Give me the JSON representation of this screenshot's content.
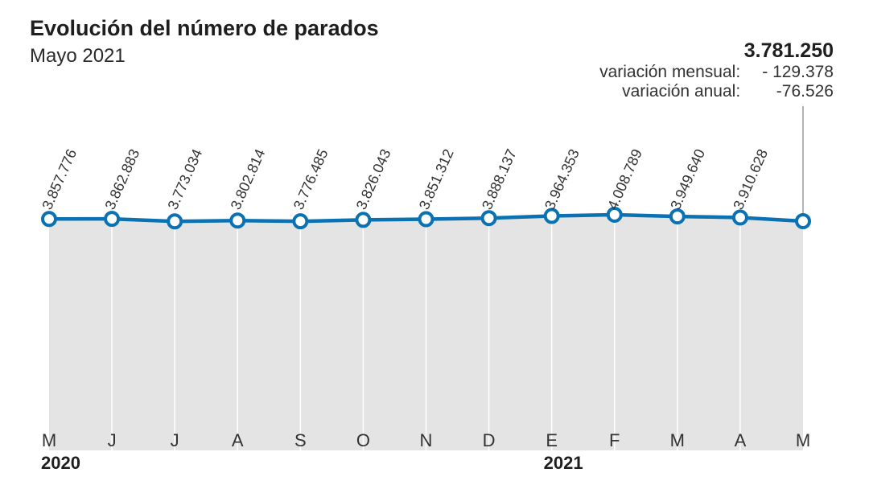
{
  "header": {
    "title": "Evolución del número de parados",
    "subtitle": "Mayo 2021"
  },
  "summary": {
    "current_value": "3.781.250",
    "monthly_label": "variación mensual:",
    "monthly_value": "- 129.378",
    "annual_label": "variación anual:",
    "annual_value": "-76.526"
  },
  "colors": {
    "line": "#0a72b3",
    "area": "#e4e4e4",
    "grid": "#ffffff"
  },
  "chart_data": {
    "type": "line",
    "title": "Evolución del número de parados",
    "subtitle": "Mayo 2021",
    "categories": [
      "M",
      "J",
      "J",
      "A",
      "S",
      "O",
      "N",
      "D",
      "E",
      "F",
      "M",
      "A",
      "M"
    ],
    "values": [
      3857776,
      3862883,
      3773034,
      3802814,
      3776485,
      3826043,
      3851312,
      3888137,
      3964353,
      4008789,
      3949640,
      3910628,
      3781250
    ],
    "data_labels": [
      "3.857.776",
      "3.862.883",
      "3.773.034",
      "3.802.814",
      "3.776.485",
      "3.826.043",
      "3.851.312",
      "3.888.137",
      "3.964.353",
      "4.008.789",
      "3.949.640",
      "3.910.628",
      ""
    ],
    "year_labels": [
      {
        "index": 0,
        "label": "2020"
      },
      {
        "index": 8,
        "label": "2021"
      }
    ],
    "grid": true,
    "area_fill": true
  }
}
